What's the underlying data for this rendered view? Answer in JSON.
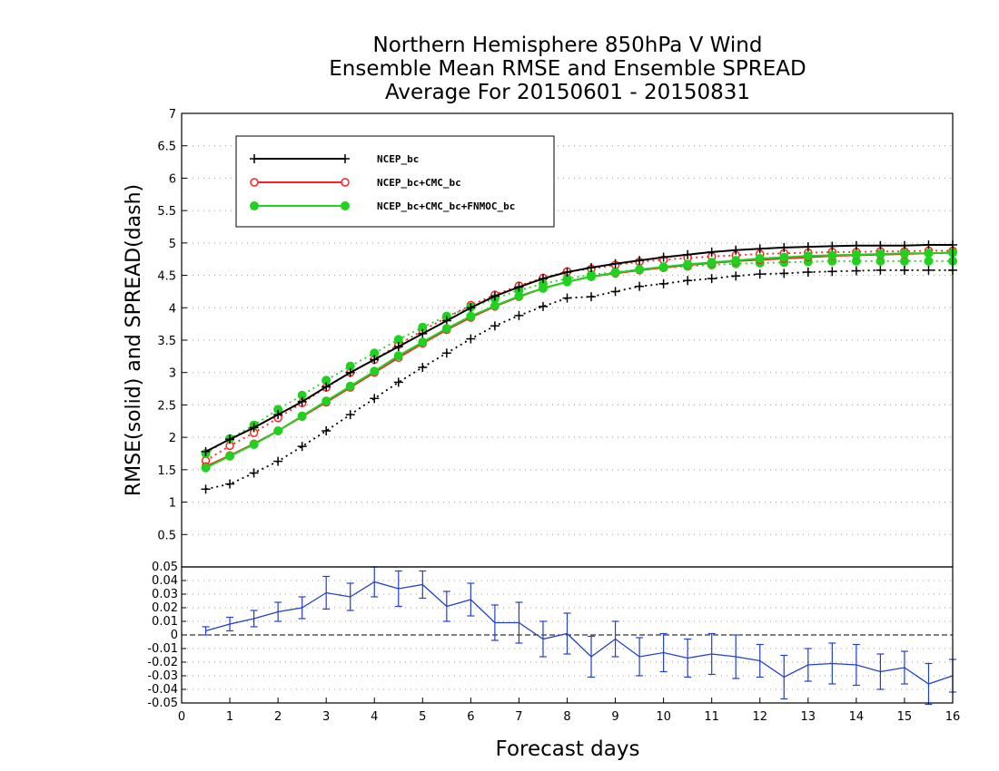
{
  "title_lines": [
    "Northern Hemisphere 850hPa V Wind",
    "Ensemble Mean RMSE and Ensemble SPREAD",
    "Average For 20150601 - 20150831"
  ],
  "chart_data": [
    {
      "type": "line",
      "panel": "top",
      "title": "Northern Hemisphere 850hPa V Wind / Ensemble Mean RMSE and Ensemble SPREAD / Average For 20150601 - 20150831",
      "ylabel": "RMSE(solid)  and  SPREAD(dash)",
      "xlabel": "",
      "xlim": [
        0,
        16
      ],
      "ylim": [
        0,
        7
      ],
      "yticks": [
        0.5,
        1,
        1.5,
        2,
        2.5,
        3,
        3.5,
        4,
        4.5,
        5,
        5.5,
        6,
        6.5,
        7
      ],
      "ytick_labels": [
        "0.5",
        "1",
        "1.5",
        "2",
        "2.5",
        "3",
        "3.5",
        "4",
        "4.5",
        "5",
        "5.5",
        "6",
        "6.5",
        "7"
      ],
      "grid": "horizontal dotted",
      "legend": "top-left",
      "x": [
        0.5,
        1,
        1.5,
        2,
        2.5,
        3,
        3.5,
        4,
        4.5,
        5,
        5.5,
        6,
        6.5,
        7,
        7.5,
        8,
        8.5,
        9,
        9.5,
        10,
        10.5,
        11,
        11.5,
        12,
        12.5,
        13,
        13.5,
        14,
        14.5,
        15,
        15.5,
        16
      ],
      "series": [
        {
          "name": "NCEP_bc",
          "kind": "rmse",
          "line": "solid",
          "color": "#000000",
          "marker": "plus",
          "values": [
            1.78,
            1.97,
            2.15,
            2.35,
            2.55,
            2.78,
            3.0,
            3.2,
            3.4,
            3.6,
            3.8,
            4.0,
            4.18,
            4.32,
            4.45,
            4.55,
            4.62,
            4.68,
            4.73,
            4.78,
            4.82,
            4.86,
            4.89,
            4.91,
            4.93,
            4.94,
            4.95,
            4.96,
            4.96,
            4.96,
            4.97,
            4.97
          ]
        },
        {
          "name": "NCEP_bc+CMC_bc",
          "kind": "rmse",
          "line": "solid",
          "color": "#ff2020",
          "marker": "open-circle",
          "values": [
            1.55,
            1.72,
            1.9,
            2.1,
            2.32,
            2.54,
            2.77,
            3.0,
            3.23,
            3.45,
            3.66,
            3.85,
            4.02,
            4.17,
            4.3,
            4.4,
            4.48,
            4.53,
            4.58,
            4.62,
            4.66,
            4.69,
            4.72,
            4.74,
            4.76,
            4.78,
            4.8,
            4.81,
            4.82,
            4.83,
            4.84,
            4.85
          ]
        },
        {
          "name": "NCEP_bc+CMC_bc+FNMOC_bc",
          "kind": "rmse",
          "line": "solid",
          "color": "#1fd21f",
          "marker": "filled-circle",
          "values": [
            1.53,
            1.71,
            1.89,
            2.1,
            2.33,
            2.56,
            2.79,
            3.02,
            3.26,
            3.47,
            3.68,
            3.87,
            4.03,
            4.18,
            4.3,
            4.4,
            4.48,
            4.54,
            4.59,
            4.63,
            4.67,
            4.7,
            4.73,
            4.76,
            4.78,
            4.8,
            4.81,
            4.82,
            4.83,
            4.84,
            4.84,
            4.85
          ]
        },
        {
          "name": "NCEP_bc",
          "kind": "spread",
          "line": "dotted",
          "color": "#000000",
          "marker": "plus",
          "values": [
            1.2,
            1.28,
            1.45,
            1.63,
            1.86,
            2.1,
            2.35,
            2.6,
            2.85,
            3.08,
            3.3,
            3.52,
            3.72,
            3.88,
            4.02,
            4.15,
            4.17,
            4.25,
            4.33,
            4.37,
            4.42,
            4.45,
            4.49,
            4.52,
            4.53,
            4.55,
            4.56,
            4.57,
            4.58,
            4.58,
            4.58,
            4.58
          ]
        },
        {
          "name": "NCEP_bc+CMC_bc",
          "kind": "spread",
          "line": "dotted",
          "color": "#ff2020",
          "marker": "open-circle",
          "values": [
            1.64,
            1.87,
            2.07,
            2.3,
            2.53,
            2.77,
            3.0,
            3.2,
            3.43,
            3.65,
            3.85,
            4.04,
            4.2,
            4.34,
            4.46,
            4.56,
            4.6,
            4.66,
            4.71,
            4.74,
            4.77,
            4.79,
            4.81,
            4.83,
            4.84,
            4.85,
            4.86,
            4.86,
            4.87,
            4.87,
            4.88,
            4.88
          ]
        },
        {
          "name": "NCEP_bc+CMC_bc+FNMOC_bc",
          "kind": "spread",
          "line": "dotted",
          "color": "#1fd21f",
          "marker": "filled-circle",
          "values": [
            1.75,
            1.98,
            2.19,
            2.43,
            2.65,
            2.88,
            3.1,
            3.3,
            3.51,
            3.7,
            3.87,
            4.01,
            4.14,
            4.27,
            4.37,
            4.45,
            4.51,
            4.55,
            4.59,
            4.62,
            4.64,
            4.66,
            4.68,
            4.69,
            4.7,
            4.71,
            4.72,
            4.72,
            4.72,
            4.72,
            4.72,
            4.72
          ]
        }
      ]
    },
    {
      "type": "line",
      "panel": "bottom",
      "title": "",
      "xlabel": "Forecast days",
      "ylabel": "",
      "xlim": [
        0,
        16
      ],
      "ylim": [
        -0.05,
        0.05
      ],
      "xticks": [
        0,
        1,
        2,
        3,
        4,
        5,
        6,
        7,
        8,
        9,
        10,
        11,
        12,
        13,
        14,
        15,
        16
      ],
      "xtick_labels": [
        "0",
        "1",
        "2",
        "3",
        "4",
        "5",
        "6",
        "7",
        "8",
        "9",
        "10",
        "11",
        "12",
        "13",
        "14",
        "15",
        "16"
      ],
      "yticks": [
        -0.05,
        -0.04,
        -0.03,
        -0.02,
        -0.01,
        0,
        0.01,
        0.02,
        0.03,
        0.04,
        0.05
      ],
      "ytick_labels": [
        "-0.05",
        "-0.04",
        "-0.03",
        "-0.02",
        "-0.01",
        "0",
        "0.01",
        "0.02",
        "0.03",
        "0.04",
        "0.05"
      ],
      "grid": "horizontal dotted",
      "zero_line": "dashed",
      "x": [
        0.5,
        1,
        1.5,
        2,
        2.5,
        3,
        3.5,
        4,
        4.5,
        5,
        5.5,
        6,
        6.5,
        7,
        7.5,
        8,
        8.5,
        9,
        9.5,
        10,
        10.5,
        11,
        11.5,
        12,
        12.5,
        13,
        13.5,
        14,
        14.5,
        15,
        15.5,
        16
      ],
      "series": [
        {
          "name": "",
          "color": "#2040d0",
          "marker": "error-bar",
          "values": [
            0.003,
            0.008,
            0.012,
            0.017,
            0.02,
            0.031,
            0.028,
            0.039,
            0.034,
            0.037,
            0.021,
            0.026,
            0.009,
            0.009,
            -0.003,
            0.001,
            -0.016,
            -0.003,
            -0.016,
            -0.013,
            -0.017,
            -0.014,
            -0.016,
            -0.019,
            -0.031,
            -0.022,
            -0.021,
            -0.022,
            -0.027,
            -0.024,
            -0.036,
            -0.03
          ],
          "error": [
            0.003,
            0.005,
            0.006,
            0.007,
            0.008,
            0.012,
            0.01,
            0.011,
            0.013,
            0.01,
            0.011,
            0.012,
            0.013,
            0.015,
            0.013,
            0.015,
            0.015,
            0.013,
            0.014,
            0.014,
            0.014,
            0.015,
            0.016,
            0.012,
            0.016,
            0.012,
            0.015,
            0.015,
            0.013,
            0.012,
            0.015,
            0.012
          ]
        }
      ]
    }
  ]
}
